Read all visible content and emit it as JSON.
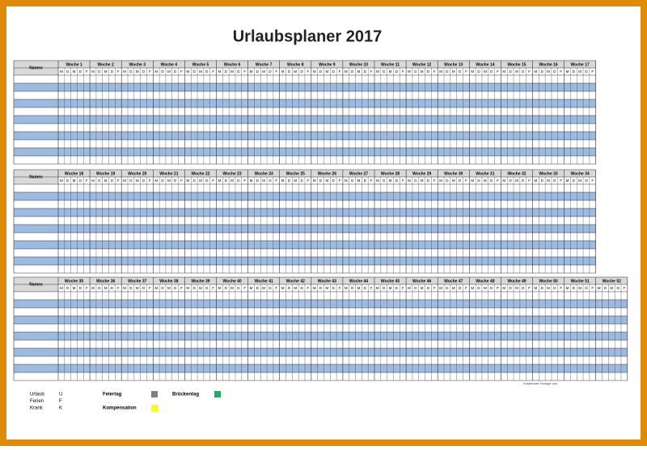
{
  "title": "Urlaubsplaner 2017",
  "names_header": "Names",
  "days": [
    "M",
    "D",
    "M",
    "D",
    "F"
  ],
  "blocks": [
    {
      "weeks": [
        "Woche 1",
        "Woche 2",
        "Woche 3",
        "Woche 4",
        "Woche 5",
        "Woche 6",
        "Woche 7",
        "Woche 8",
        "Woche 9",
        "Woche 10",
        "Woche 11",
        "Woche 12",
        "Woche 13",
        "Woche 14",
        "Woche 15",
        "Woche 16",
        "Woche 17"
      ]
    },
    {
      "weeks": [
        "Woche 18",
        "Woche 19",
        "Woche 20",
        "Woche 21",
        "Woche 22",
        "Woche 23",
        "Woche 24",
        "Woche 25",
        "Woche 26",
        "Woche 27",
        "Woche 28",
        "Woche 29",
        "Woche 30",
        "Woche 31",
        "Woche 32",
        "Woche 33",
        "Woche 34"
      ]
    },
    {
      "weeks": [
        "Woche 35",
        "Woche 36",
        "Woche 37",
        "Woche 38",
        "Woche 39",
        "Woche 40",
        "Woche 41",
        "Woche 42",
        "Woche 43",
        "Woche 44",
        "Woche 45",
        "Woche 46",
        "Woche 47",
        "Woche 48",
        "Woche 49",
        "Woche 50",
        "Woche 51",
        "Woche 52"
      ]
    }
  ],
  "legend_codes": [
    {
      "label": "Urlaub",
      "code": "U"
    },
    {
      "label": "Ferien",
      "code": "F"
    },
    {
      "label": "Krank",
      "code": "K"
    }
  ],
  "legend_colors": [
    {
      "label": "Feiertag",
      "color": "#808080"
    },
    {
      "label": "Brückentag",
      "color": "#1fae5e"
    },
    {
      "label": "Kompensation",
      "color": "#ffff00"
    }
  ],
  "footer": "Kostenlose Vorlage von"
}
